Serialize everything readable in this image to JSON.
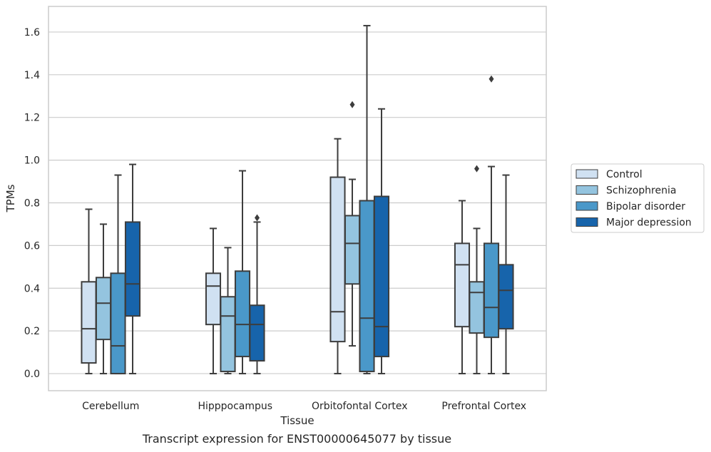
{
  "chart_data": {
    "type": "box",
    "title": "",
    "xlabel": "Tissue",
    "ylabel": "TPMs",
    "caption": "Transcript expression for ENST00000645077 by tissue",
    "ylim": [
      -0.08,
      1.72
    ],
    "yticks": [
      "0.0",
      "0.2",
      "0.4",
      "0.6",
      "0.8",
      "1.0",
      "1.2",
      "1.4",
      "1.6"
    ],
    "grid": true,
    "legend_position": "right",
    "categories": [
      "Cerebellum",
      "Hipppocampus",
      "Orbitofontal Cortex",
      "Prefrontal Cortex"
    ],
    "series": [
      {
        "name": "Control",
        "color": "#d0e1f2",
        "boxes": [
          {
            "whislo": 0.0,
            "q1": 0.05,
            "med": 0.21,
            "q3": 0.43,
            "whishi": 0.77,
            "fliers": []
          },
          {
            "whislo": 0.0,
            "q1": 0.23,
            "med": 0.41,
            "q3": 0.47,
            "whishi": 0.68,
            "fliers": []
          },
          {
            "whislo": 0.0,
            "q1": 0.15,
            "med": 0.29,
            "q3": 0.92,
            "whishi": 1.1,
            "fliers": []
          },
          {
            "whislo": 0.0,
            "q1": 0.22,
            "med": 0.51,
            "q3": 0.61,
            "whishi": 0.81,
            "fliers": []
          }
        ]
      },
      {
        "name": "Schizophrenia",
        "color": "#94c4df",
        "boxes": [
          {
            "whislo": 0.0,
            "q1": 0.16,
            "med": 0.33,
            "q3": 0.45,
            "whishi": 0.7,
            "fliers": []
          },
          {
            "whislo": 0.0,
            "q1": 0.01,
            "med": 0.27,
            "q3": 0.36,
            "whishi": 0.59,
            "fliers": []
          },
          {
            "whislo": 0.13,
            "q1": 0.42,
            "med": 0.61,
            "q3": 0.74,
            "whishi": 0.91,
            "fliers": [
              1.26
            ]
          },
          {
            "whislo": 0.0,
            "q1": 0.19,
            "med": 0.38,
            "q3": 0.43,
            "whishi": 0.68,
            "fliers": [
              0.96
            ]
          }
        ]
      },
      {
        "name": "Bipolar disorder",
        "color": "#4a98c9",
        "boxes": [
          {
            "whislo": 0.0,
            "q1": 0.0,
            "med": 0.13,
            "q3": 0.47,
            "whishi": 0.93,
            "fliers": []
          },
          {
            "whislo": 0.0,
            "q1": 0.08,
            "med": 0.23,
            "q3": 0.48,
            "whishi": 0.95,
            "fliers": []
          },
          {
            "whislo": 0.0,
            "q1": 0.01,
            "med": 0.26,
            "q3": 0.81,
            "whishi": 1.63,
            "fliers": []
          },
          {
            "whislo": 0.0,
            "q1": 0.17,
            "med": 0.31,
            "q3": 0.61,
            "whishi": 0.97,
            "fliers": [
              1.38
            ]
          }
        ]
      },
      {
        "name": "Major depression",
        "color": "#1764ab",
        "boxes": [
          {
            "whislo": 0.0,
            "q1": 0.27,
            "med": 0.42,
            "q3": 0.71,
            "whishi": 0.98,
            "fliers": []
          },
          {
            "whislo": 0.0,
            "q1": 0.06,
            "med": 0.23,
            "q3": 0.32,
            "whishi": 0.71,
            "fliers": [
              0.73
            ]
          },
          {
            "whislo": 0.0,
            "q1": 0.08,
            "med": 0.22,
            "q3": 0.83,
            "whishi": 1.24,
            "fliers": []
          },
          {
            "whislo": 0.0,
            "q1": 0.21,
            "med": 0.39,
            "q3": 0.51,
            "whishi": 0.93,
            "fliers": []
          }
        ]
      }
    ]
  }
}
